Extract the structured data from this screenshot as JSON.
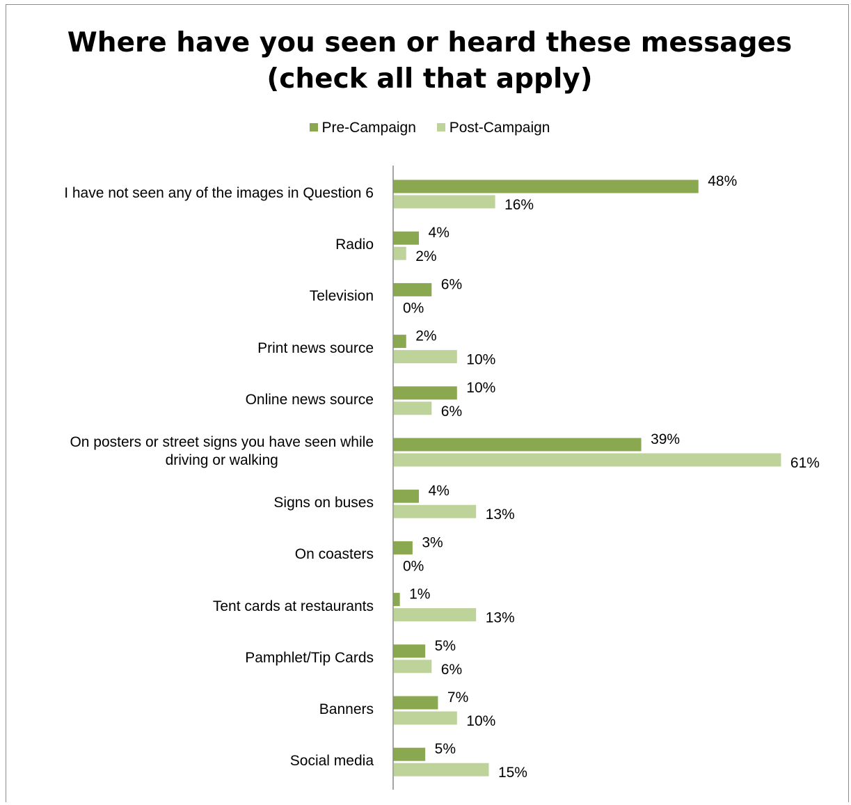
{
  "chart_data": {
    "type": "bar",
    "orientation": "horizontal",
    "title_lines": [
      "Where have you seen or heard these messages",
      "(check all that apply)"
    ],
    "categories": [
      "I have not seen any of the images in Question 6",
      "Radio",
      "Television",
      "Print news source",
      "Online news source",
      "On posters or street signs you have seen while driving or walking",
      "Signs on buses",
      "On coasters",
      "Tent cards at restaurants",
      "Pamphlet/Tip Cards",
      "Banners",
      "Social media"
    ],
    "category_label_lines": [
      [
        "I have not seen any of the images in Question 6"
      ],
      [
        "Radio"
      ],
      [
        "Television"
      ],
      [
        "Print news source"
      ],
      [
        "Online news source"
      ],
      [
        "On posters or street signs you have seen while",
        "driving or walking"
      ],
      [
        "Signs on buses"
      ],
      [
        "On coasters"
      ],
      [
        "Tent cards at restaurants"
      ],
      [
        "Pamphlet/Tip Cards"
      ],
      [
        "Banners"
      ],
      [
        "Social media"
      ]
    ],
    "series": [
      {
        "name": "Pre-Campaign",
        "color": "#8aa84f",
        "values": [
          48,
          4,
          6,
          2,
          10,
          39,
          4,
          3,
          1,
          5,
          7,
          5
        ],
        "labels": [
          "48%",
          "4%",
          "6%",
          "2%",
          "10%",
          "39%",
          "4%",
          "3%",
          "1%",
          "5%",
          "7%",
          "5%"
        ]
      },
      {
        "name": "Post-Campaign",
        "color": "#bdd39a",
        "values": [
          16,
          2,
          0,
          10,
          6,
          61,
          13,
          0,
          13,
          6,
          10,
          15
        ],
        "labels": [
          "16%",
          "2%",
          "0%",
          "10%",
          "6%",
          "61%",
          "13%",
          "0%",
          "13%",
          "6%",
          "10%",
          "15%"
        ]
      }
    ],
    "value_unit": "%",
    "xlim": [
      0,
      61
    ],
    "legend_position": "top",
    "grid": false,
    "axis_line_color": "#868686"
  }
}
